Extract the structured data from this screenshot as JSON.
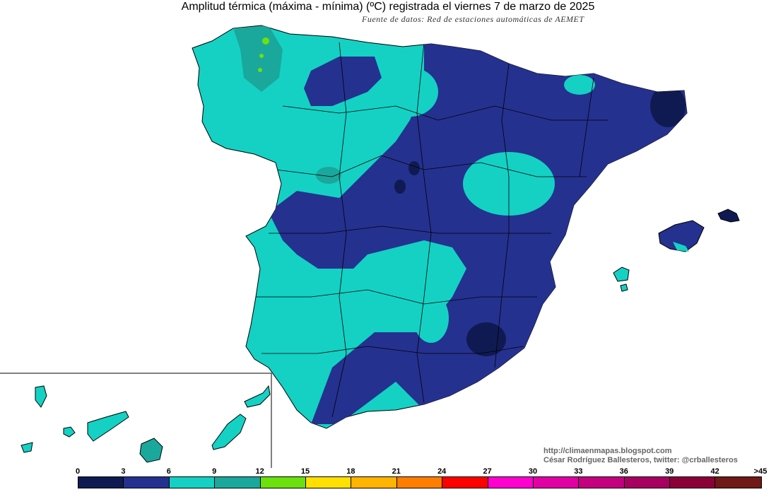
{
  "header": {
    "title": "Amplitud térmica (máxima - mínima) (ºC) registrada el viernes 7 de marzo de 2025",
    "subtitle": "Fuente de datos: Red de estaciones automáticas de AEMET"
  },
  "credits": {
    "blog": "http://climaenmapas.blogspot.com",
    "author": "César Rodríguez Ballesteros, twitter: @crballesteros"
  },
  "legend": {
    "ticks": [
      "0",
      "3",
      "6",
      "9",
      "12",
      "15",
      "18",
      "21",
      "24",
      "27",
      "30",
      "33",
      "36",
      "39",
      "42",
      ">45"
    ],
    "colors": [
      "#101a52",
      "#25318f",
      "#14d1c4",
      "#1aa89c",
      "#6ce10e",
      "#ffe000",
      "#ffb400",
      "#ff7e00",
      "#ff0000",
      "#ff00d0",
      "#e000a4",
      "#c4007e",
      "#a80060",
      "#8c0038",
      "#701818"
    ]
  },
  "map_colors": {
    "sea": "#ffffff",
    "band_3_6": "#25318f",
    "band_6_9": "#14d1c4",
    "band_9_12": "#1aa89c",
    "band_0_3": "#101a52",
    "band_12_15": "#6ce10e",
    "borders": "#000000"
  }
}
